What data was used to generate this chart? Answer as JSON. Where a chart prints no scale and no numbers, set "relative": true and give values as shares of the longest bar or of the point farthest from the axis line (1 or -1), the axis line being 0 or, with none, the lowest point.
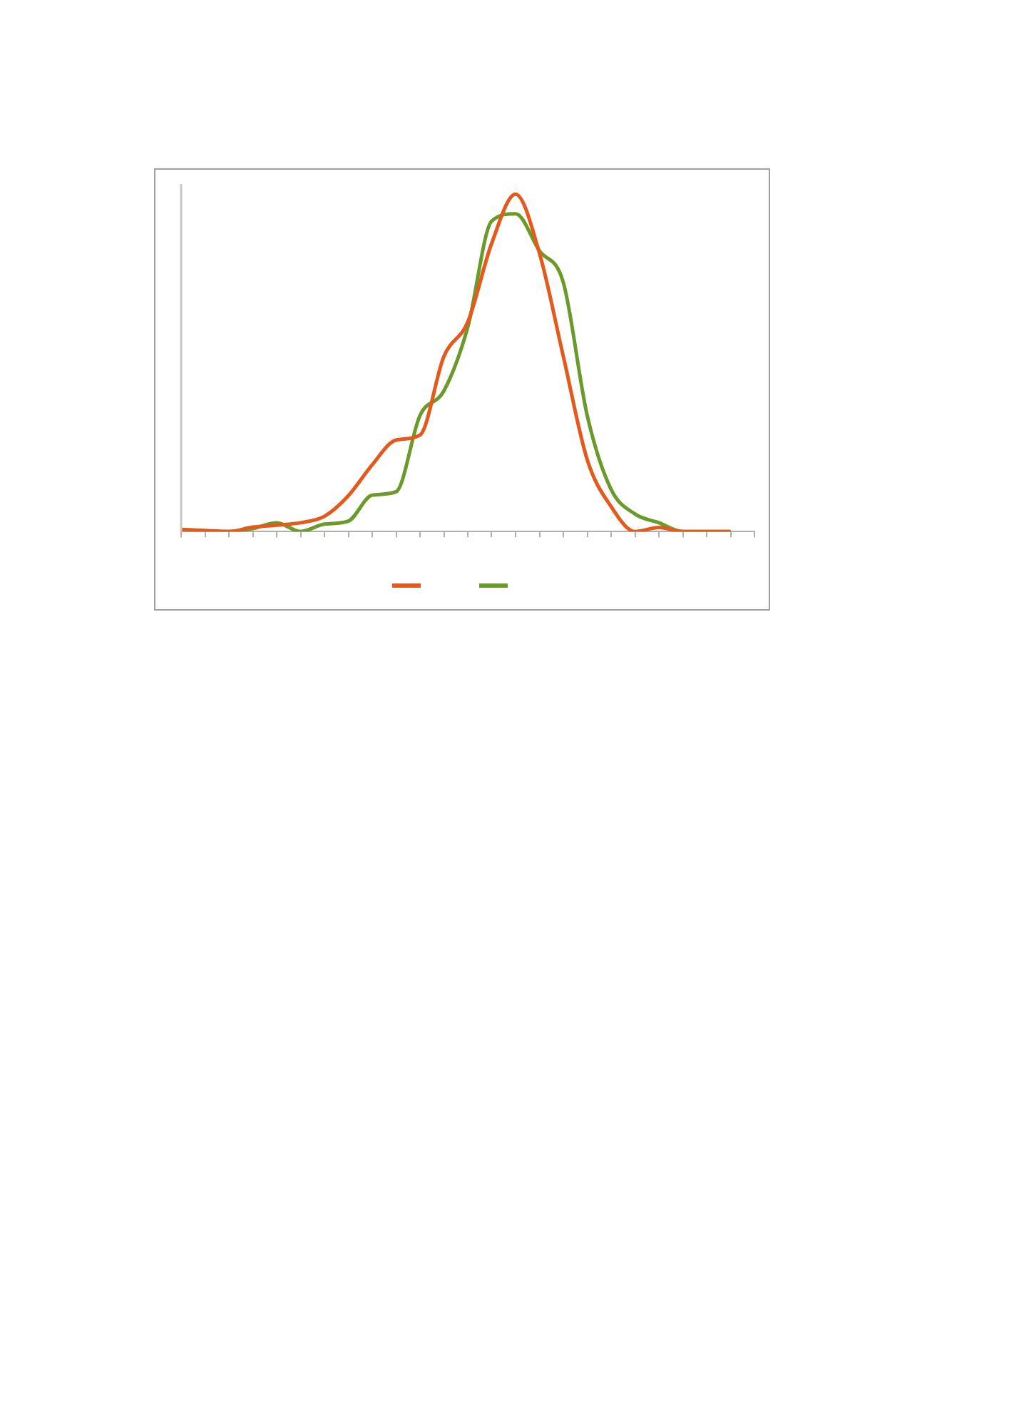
{
  "chart_data": {
    "type": "line",
    "relative": true,
    "categories": [
      null,
      null,
      null,
      null,
      null,
      null,
      null,
      null,
      null,
      null,
      null,
      null,
      null,
      null,
      null,
      null,
      null,
      null,
      null,
      null,
      null,
      null,
      null,
      null,
      null
    ],
    "grid": false,
    "marker": "none",
    "line_style": "solid",
    "series": [
      {
        "color": "#e35a1c",
        "values": [
          0.006,
          0.003,
          0,
          0.013,
          0.019,
          0.026,
          0.045,
          0.106,
          0.198,
          0.271,
          0.286,
          0.519,
          0.621,
          0.854,
          1,
          0.825,
          0.519,
          0.213,
          0.074,
          0,
          0.012,
          0,
          0,
          0,
          null
        ]
      },
      {
        "color": "#6a9a2a",
        "values": [
          0,
          0,
          0,
          0.009,
          0.026,
          0,
          0.022,
          0.031,
          0.108,
          0.118,
          0.344,
          0.417,
          0.606,
          0.92,
          0.942,
          0.832,
          0.738,
          0.344,
          0.125,
          0.052,
          0.026,
          0,
          0,
          0,
          null
        ]
      }
    ]
  }
}
